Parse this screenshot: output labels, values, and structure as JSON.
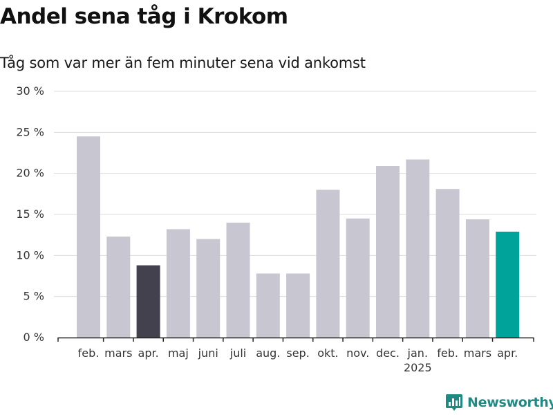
{
  "header": {
    "title": "Andel sena tåg i Krokom",
    "subtitle": "Tåg som var mer än fem minuter sena vid ankomst"
  },
  "brand": {
    "name": "Newsworthy",
    "color": "#1f8a84"
  },
  "chart_data": {
    "type": "bar",
    "title": "Andel sena tåg i Krokom",
    "subtitle": "Tåg som var mer än fem minuter sena vid ankomst",
    "categories": [
      "feb.",
      "mars",
      "apr.",
      "maj",
      "juni",
      "juli",
      "aug.",
      "sep.",
      "okt.",
      "nov.",
      "dec.",
      "jan.",
      "feb.",
      "mars",
      "apr."
    ],
    "year_labels": [
      {
        "category_index": 11,
        "label": "2025"
      }
    ],
    "values": [
      24.5,
      12.3,
      8.8,
      13.2,
      12.0,
      14.0,
      7.8,
      7.8,
      18.0,
      14.5,
      20.9,
      21.7,
      18.1,
      14.4,
      12.9
    ],
    "highlights": [
      {
        "category_index": 2,
        "color": "#43414e"
      },
      {
        "category_index": 14,
        "color": "#00a39a"
      }
    ],
    "bar_color": "#c8c7d1",
    "ylim": [
      0,
      30
    ],
    "yticks": [
      0,
      5,
      10,
      15,
      20,
      25,
      30
    ],
    "ytick_labels": [
      "0 %",
      "5 %",
      "10 %",
      "15 %",
      "20 %",
      "25 %",
      "30 %"
    ],
    "xlabel": "",
    "ylabel": "",
    "grid": true,
    "legend": "none"
  }
}
